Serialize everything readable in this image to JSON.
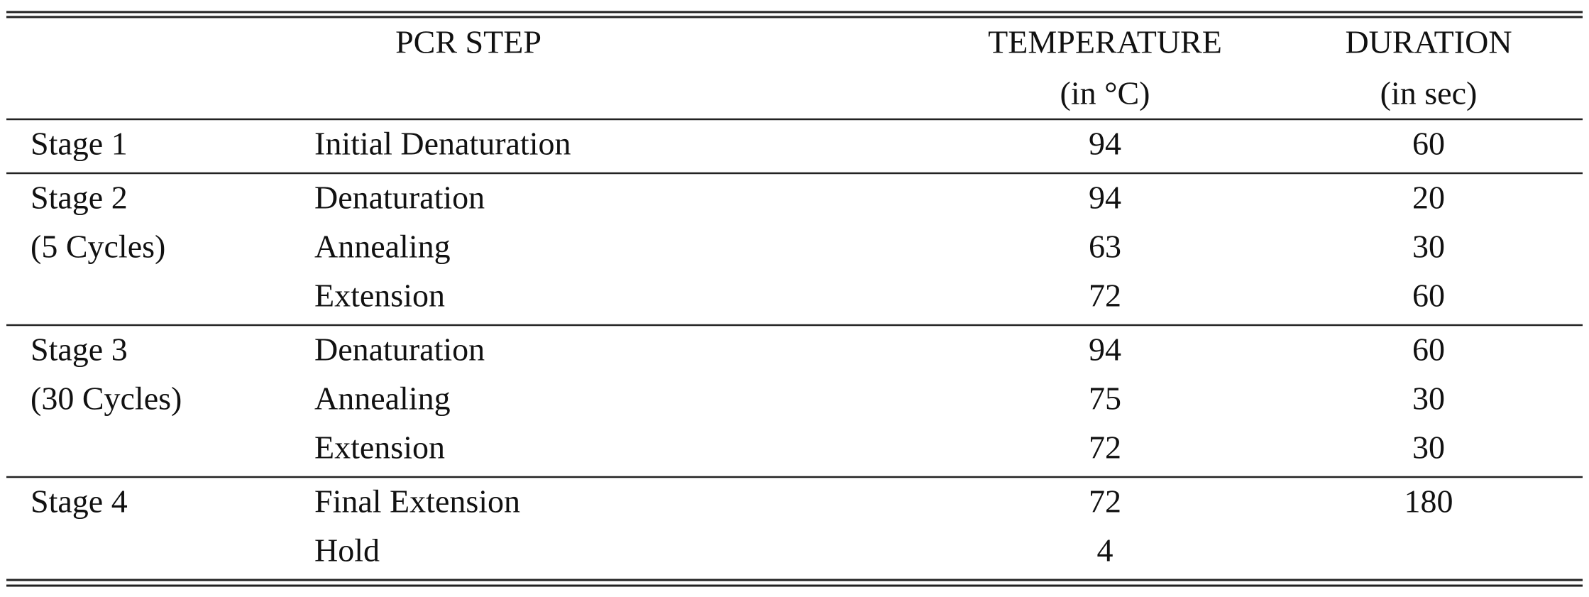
{
  "header": {
    "step": "PCR STEP",
    "temperature": [
      "TEMPERATURE",
      "(in °C)"
    ],
    "duration": [
      "DURATION",
      "(in sec)"
    ]
  },
  "groups": [
    {
      "stage": [
        "Stage 1"
      ],
      "steps": [
        {
          "name": "Initial Denaturation",
          "temperature": 94,
          "duration": 60
        }
      ]
    },
    {
      "stage": [
        "Stage 2",
        "(5 Cycles)"
      ],
      "steps": [
        {
          "name": "Denaturation",
          "temperature": 94,
          "duration": 20
        },
        {
          "name": "Annealing",
          "temperature": 63,
          "duration": 30
        },
        {
          "name": "Extension",
          "temperature": 72,
          "duration": 60
        }
      ]
    },
    {
      "stage": [
        "Stage 3",
        "(30 Cycles)"
      ],
      "steps": [
        {
          "name": "Denaturation",
          "temperature": 94,
          "duration": 60
        },
        {
          "name": "Annealing",
          "temperature": 75,
          "duration": 30
        },
        {
          "name": "Extension",
          "temperature": 72,
          "duration": 30
        }
      ]
    },
    {
      "stage": [
        "Stage 4"
      ],
      "steps": [
        {
          "name": "Final Extension",
          "temperature": 72,
          "duration": 180
        },
        {
          "name": "Hold",
          "temperature": 4
        }
      ]
    }
  ]
}
